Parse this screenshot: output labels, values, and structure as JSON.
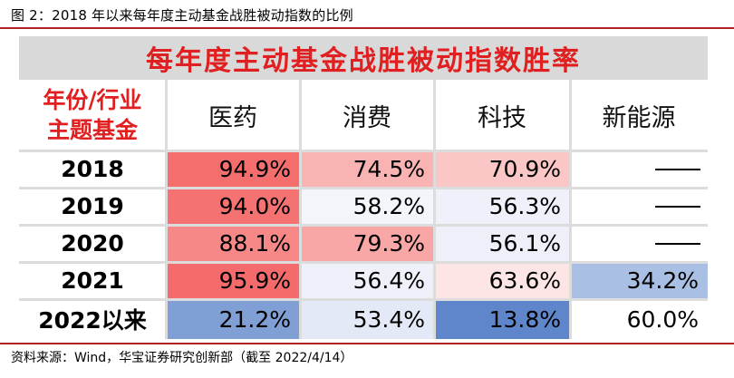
{
  "caption": "图 2：2018 年以来每年度主动基金战胜被动指数的比例",
  "source": "资料来源：Wind，华宝证券研究创新部（截至 2022/4/14）",
  "table": {
    "title": "每年度主动基金战胜被动指数胜率",
    "corner_line1": "年份/行业",
    "corner_line2": "主题基金",
    "columns": [
      "医药",
      "消费",
      "科技",
      "新能源"
    ],
    "rows": [
      {
        "label": "2018",
        "cells": [
          {
            "text": "94.9%",
            "bg": "#f56e6e"
          },
          {
            "text": "74.5%",
            "bg": "#f9b3b3"
          },
          {
            "text": "70.9%",
            "bg": "#fbc6c6"
          },
          {
            "text": "——",
            "bg": "#ffffff"
          }
        ]
      },
      {
        "label": "2019",
        "cells": [
          {
            "text": "94.0%",
            "bg": "#f57272"
          },
          {
            "text": "58.2%",
            "bg": "#f3f5fb"
          },
          {
            "text": "56.3%",
            "bg": "#eef1f9"
          },
          {
            "text": "——",
            "bg": "#ffffff"
          }
        ]
      },
      {
        "label": "2020",
        "cells": [
          {
            "text": "88.1%",
            "bg": "#f68888"
          },
          {
            "text": "79.3%",
            "bg": "#f8a6a6"
          },
          {
            "text": "56.1%",
            "bg": "#edf0f9"
          },
          {
            "text": "——",
            "bg": "#ffffff"
          }
        ]
      },
      {
        "label": "2021",
        "cells": [
          {
            "text": "95.9%",
            "bg": "#f56a6a"
          },
          {
            "text": "56.4%",
            "bg": "#eef1f9"
          },
          {
            "text": "63.6%",
            "bg": "#fde5e5"
          },
          {
            "text": "34.2%",
            "bg": "#a9bfe3"
          }
        ]
      },
      {
        "label": "2022以来",
        "cells": [
          {
            "text": "21.2%",
            "bg": "#7f9fd5"
          },
          {
            "text": "53.4%",
            "bg": "#e3e9f6"
          },
          {
            "text": "13.8%",
            "bg": "#5f86cb"
          },
          {
            "text": "60.0%",
            "bg": "#ffffff"
          }
        ]
      }
    ]
  }
}
